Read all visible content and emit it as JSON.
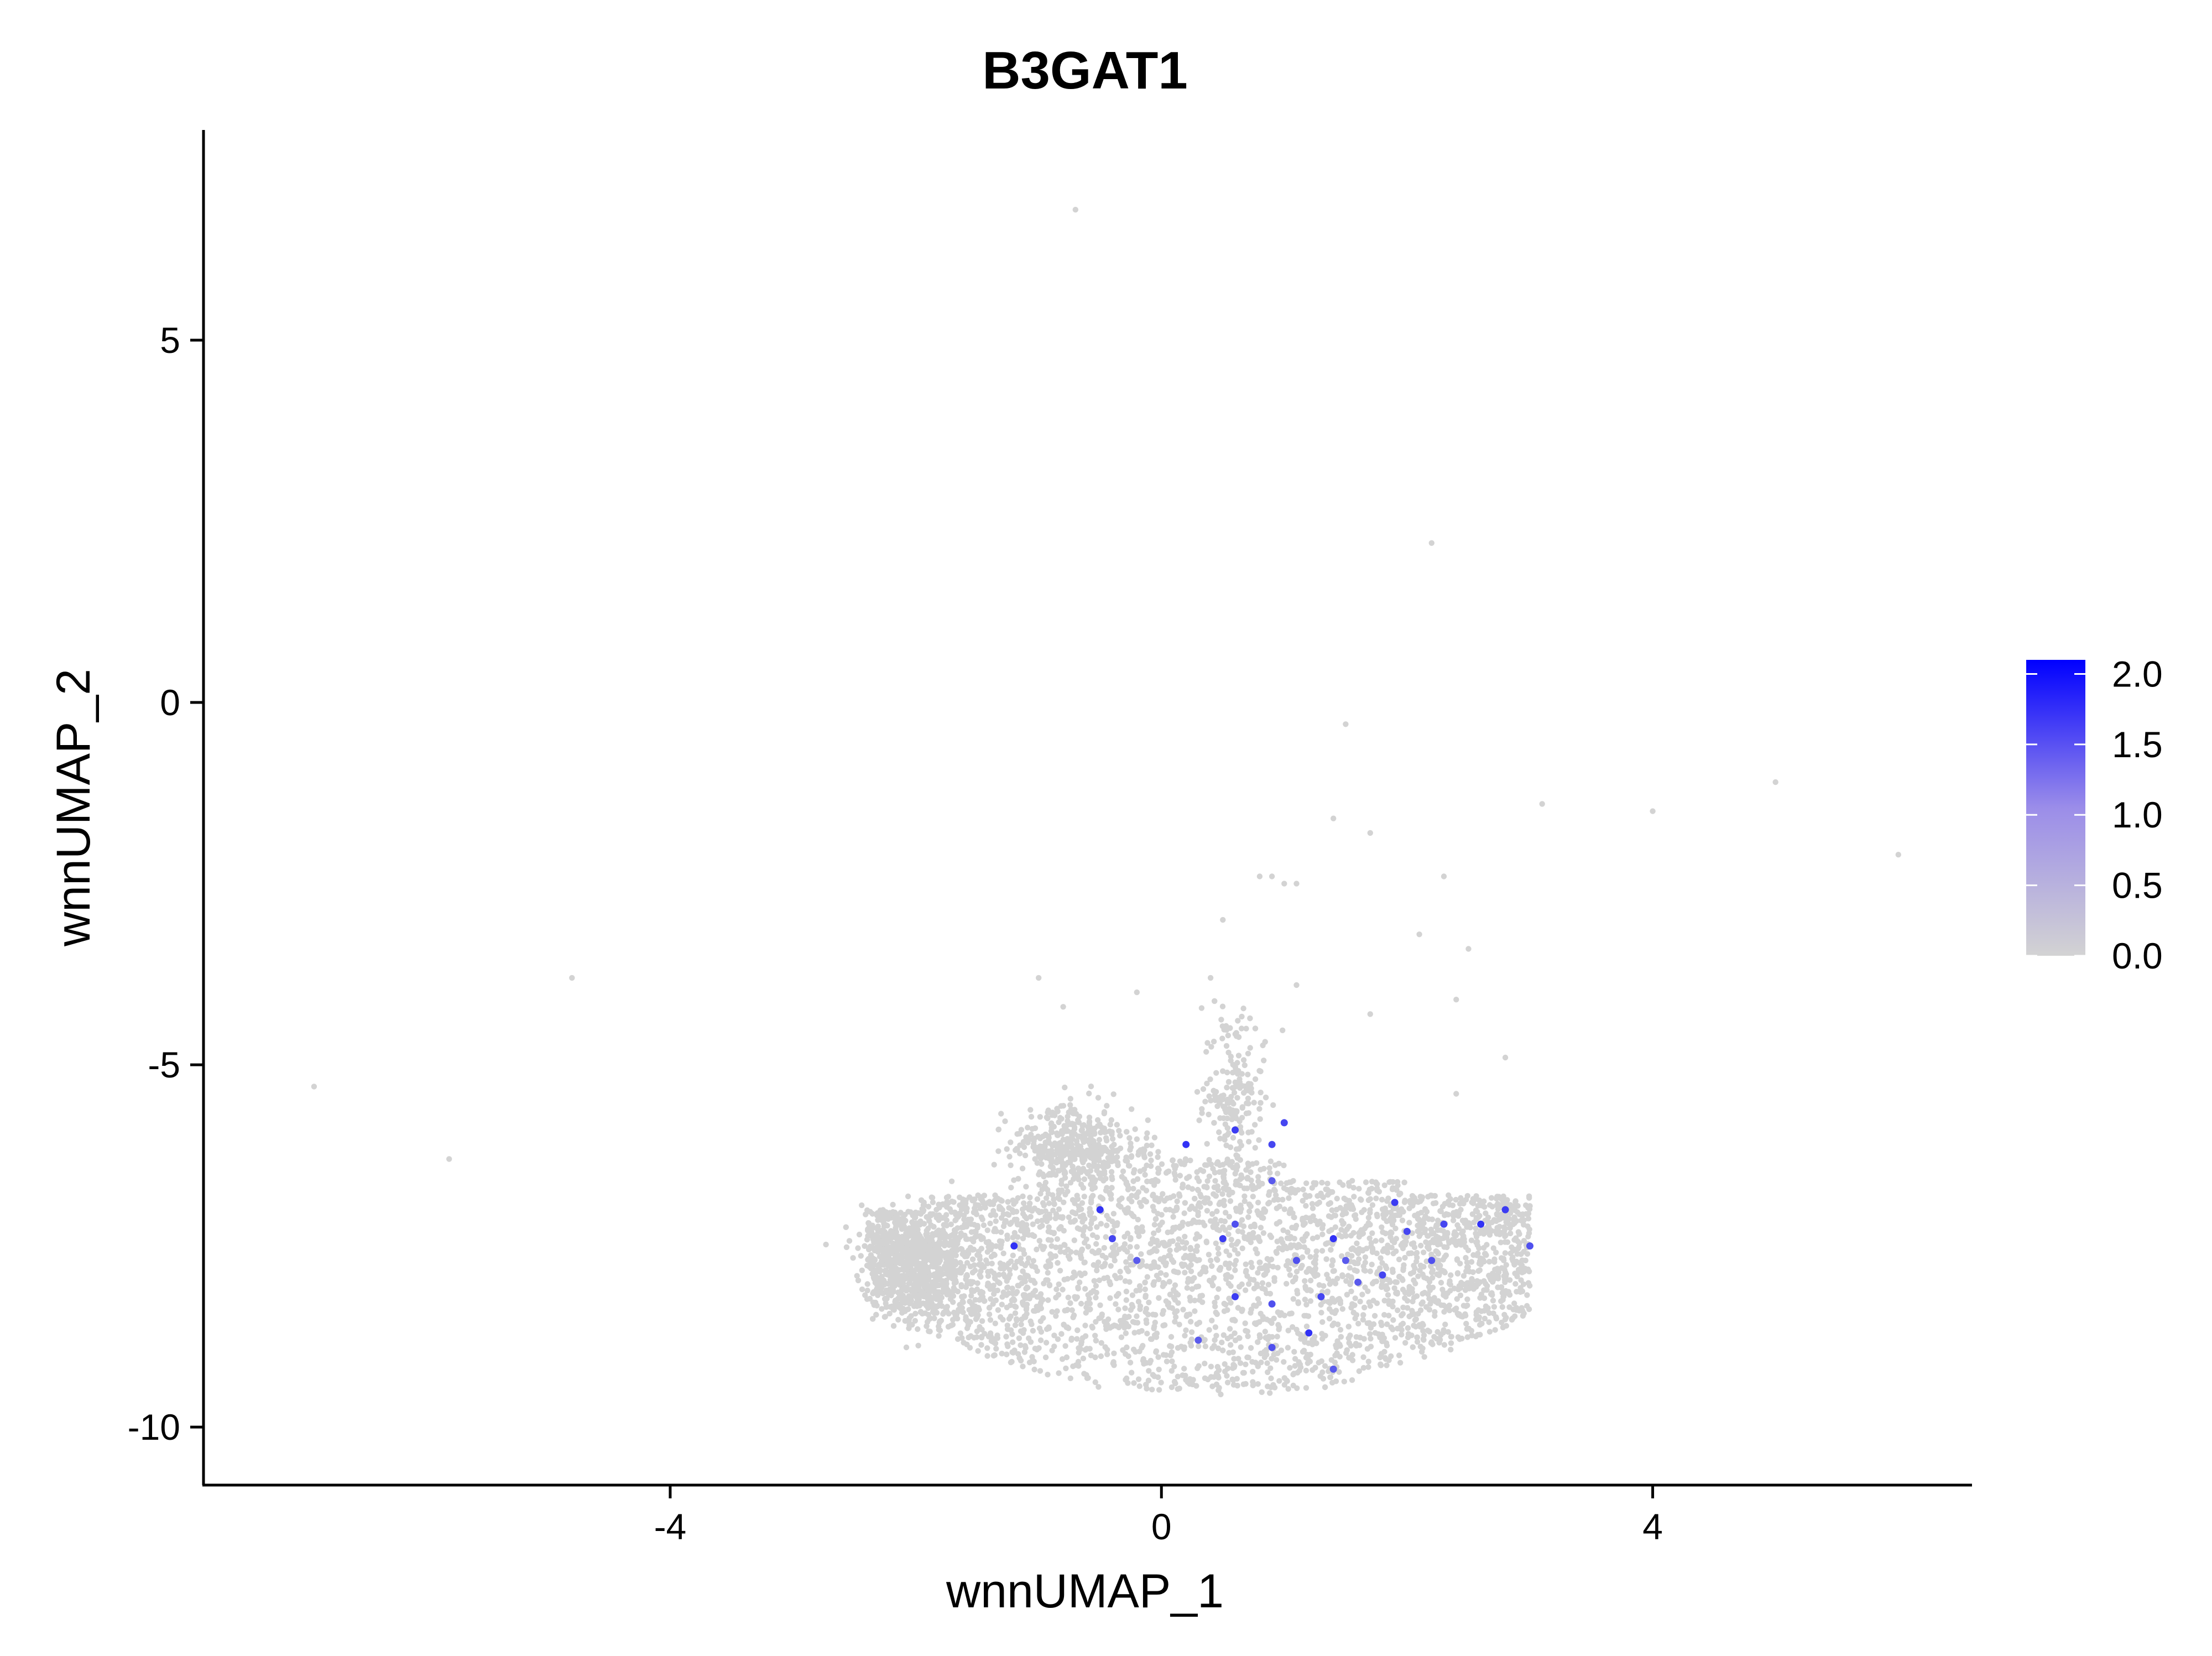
{
  "chart_data": {
    "type": "scatter",
    "title": "B3GAT1",
    "xlabel": "wnnUMAP_1",
    "ylabel": "wnnUMAP_2",
    "xlim": [
      -7.8,
      6.6
    ],
    "ylim": [
      -10.8,
      7.9
    ],
    "x_ticks": [
      "-4",
      "0",
      "4"
    ],
    "x_tick_values": [
      -4,
      0,
      4
    ],
    "y_ticks": [
      "5",
      "0",
      "-5",
      "-10"
    ],
    "y_tick_values": [
      5,
      0,
      -5,
      -10
    ],
    "grid": false,
    "legend": {
      "position": "right",
      "title": "",
      "scale_min": 0.0,
      "scale_max": 2.1,
      "labels": [
        "2.0",
        "1.5",
        "1.0",
        "0.5",
        "0.0"
      ],
      "label_values": [
        2.0,
        1.5,
        1.0,
        0.5,
        0.0
      ],
      "low_color": "#d3d3d3",
      "high_color": "#0000ff"
    },
    "point_color": "#d3d3d3",
    "cluster": {
      "description_note": "dense cloud of several thousand unexpressing cells",
      "center": [
        0.4,
        -8.2
      ],
      "x_range": [
        -2.4,
        3.0
      ],
      "y_range": [
        -9.6,
        -6.0
      ]
    },
    "outlier_points": [
      {
        "x": -0.7,
        "y": 6.8
      },
      {
        "x": 2.2,
        "y": 2.2
      },
      {
        "x": 1.5,
        "y": -0.3
      },
      {
        "x": 5.0,
        "y": -1.1
      },
      {
        "x": 3.1,
        "y": -1.4
      },
      {
        "x": 4.0,
        "y": -1.5
      },
      {
        "x": 1.4,
        "y": -1.6
      },
      {
        "x": 1.7,
        "y": -1.8
      },
      {
        "x": 6.0,
        "y": -2.1
      },
      {
        "x": 2.3,
        "y": -2.4
      },
      {
        "x": 0.9,
        "y": -2.4
      },
      {
        "x": 1.0,
        "y": -2.5
      },
      {
        "x": 1.1,
        "y": -2.5
      },
      {
        "x": 0.8,
        "y": -2.4
      },
      {
        "x": 0.5,
        "y": -3.0
      },
      {
        "x": 2.1,
        "y": -3.2
      },
      {
        "x": 2.5,
        "y": -3.4
      },
      {
        "x": -4.8,
        "y": -3.8
      },
      {
        "x": -1.0,
        "y": -3.8
      },
      {
        "x": 0.4,
        "y": -3.8
      },
      {
        "x": 1.1,
        "y": -3.9
      },
      {
        "x": -0.2,
        "y": -4.0
      },
      {
        "x": 2.4,
        "y": -4.1
      },
      {
        "x": -0.8,
        "y": -4.2
      },
      {
        "x": 1.7,
        "y": -4.3
      },
      {
        "x": 2.8,
        "y": -4.9
      },
      {
        "x": -6.9,
        "y": -5.3
      },
      {
        "x": 2.4,
        "y": -5.4
      },
      {
        "x": -5.8,
        "y": -6.3
      }
    ],
    "expressing_points": [
      {
        "x": 0.6,
        "y": -5.9,
        "value": 1.5
      },
      {
        "x": 1.0,
        "y": -5.8,
        "value": 1.4
      },
      {
        "x": 0.2,
        "y": -6.1,
        "value": 1.6
      },
      {
        "x": 0.9,
        "y": -6.1,
        "value": 1.4
      },
      {
        "x": 0.9,
        "y": -6.6,
        "value": 1.2
      },
      {
        "x": -0.5,
        "y": -7.0,
        "value": 1.6
      },
      {
        "x": 0.6,
        "y": -7.2,
        "value": 1.3
      },
      {
        "x": 1.9,
        "y": -6.9,
        "value": 1.5
      },
      {
        "x": 2.3,
        "y": -7.2,
        "value": 1.4
      },
      {
        "x": 2.6,
        "y": -7.2,
        "value": 1.6
      },
      {
        "x": 2.8,
        "y": -7.0,
        "value": 1.5
      },
      {
        "x": 3.0,
        "y": -7.5,
        "value": 1.3
      },
      {
        "x": -1.2,
        "y": -7.5,
        "value": 1.6
      },
      {
        "x": -0.4,
        "y": -7.4,
        "value": 1.4
      },
      {
        "x": -0.2,
        "y": -7.7,
        "value": 1.2
      },
      {
        "x": 0.5,
        "y": -7.4,
        "value": 1.5
      },
      {
        "x": 1.1,
        "y": -7.7,
        "value": 1.3
      },
      {
        "x": 1.4,
        "y": -7.4,
        "value": 1.6
      },
      {
        "x": 1.5,
        "y": -7.7,
        "value": 1.2
      },
      {
        "x": 2.0,
        "y": -7.3,
        "value": 1.4
      },
      {
        "x": 0.6,
        "y": -8.2,
        "value": 1.5
      },
      {
        "x": 0.9,
        "y": -8.3,
        "value": 1.3
      },
      {
        "x": 1.3,
        "y": -8.2,
        "value": 1.4
      },
      {
        "x": 1.2,
        "y": -8.7,
        "value": 1.6
      },
      {
        "x": 0.3,
        "y": -8.8,
        "value": 1.2
      },
      {
        "x": 0.9,
        "y": -8.9,
        "value": 1.3
      },
      {
        "x": 1.4,
        "y": -9.2,
        "value": 1.2
      },
      {
        "x": 1.8,
        "y": -7.9,
        "value": 1.4
      },
      {
        "x": 2.2,
        "y": -7.7,
        "value": 1.3
      },
      {
        "x": 1.6,
        "y": -8.0,
        "value": 1.2
      }
    ]
  }
}
